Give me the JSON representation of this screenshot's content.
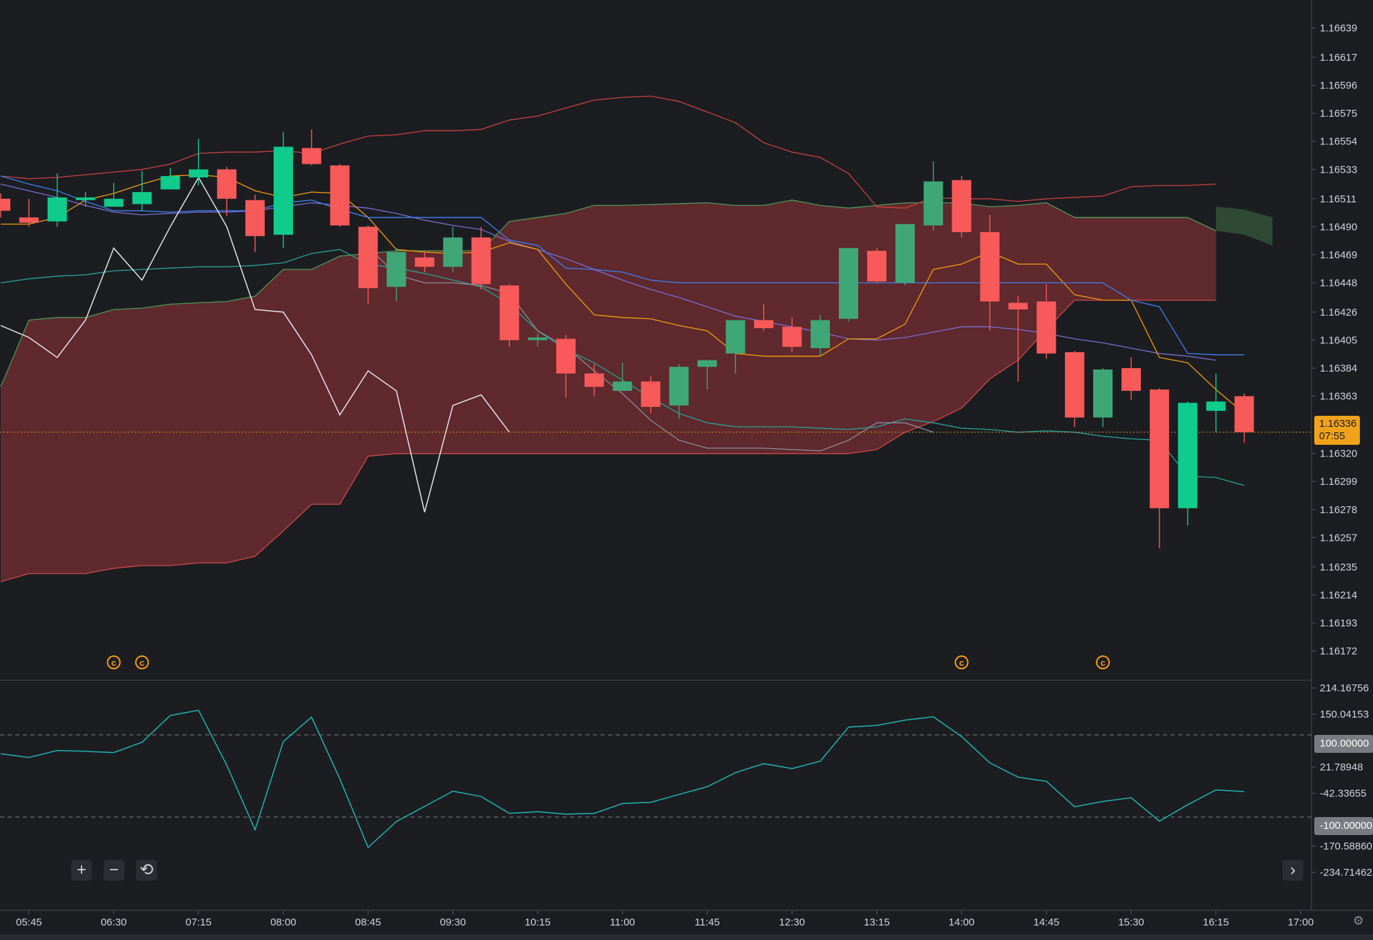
{
  "price_axis": {
    "ticks": [
      "1.16639",
      "1.16617",
      "1.16596",
      "1.16575",
      "1.16554",
      "1.16533",
      "1.16511",
      "1.16490",
      "1.16469",
      "1.16448",
      "1.16426",
      "1.16405",
      "1.16384",
      "1.16363",
      "1.16320",
      "1.16299",
      "1.16278",
      "1.16257",
      "1.16235",
      "1.16214",
      "1.16193",
      "1.16172"
    ],
    "current_price": "1.16336",
    "countdown": "07:55"
  },
  "indicator_axis": {
    "ticks": [
      "214.16756",
      "150.04153",
      "21.78948",
      "-42.33655",
      "-170.58860",
      "-234.71462"
    ],
    "upper_level": "100.00000",
    "lower_level": "-100.00000"
  },
  "time_axis": {
    "ticks": [
      "05:45",
      "06:30",
      "07:15",
      "08:00",
      "08:45",
      "09:30",
      "10:15",
      "11:00",
      "11:45",
      "12:30",
      "13:15",
      "14:00",
      "14:45",
      "15:30",
      "16:15",
      "17:00"
    ]
  },
  "controls": {
    "zoom_in": "+",
    "zoom_out": "−",
    "reset": "⟲",
    "scroll_right": "›",
    "settings": "⚙"
  },
  "event_marker_glyph": "©",
  "colors": {
    "background": "#1c1d21",
    "bull": "#26a69a",
    "bull_bright": "#0fcb8c",
    "bear": "#f85a5a",
    "cloud_bear": "#6b2c30",
    "cloud_bull": "#2e4a34",
    "bb_upper": "#c8433f",
    "bb_mid": "#2f66d8",
    "bb_lower": "#c8433f",
    "tenkan": "#f59e0b",
    "kijun": "#3b82f6",
    "chikou": "#8a8f98",
    "white_line": "#e8e8e8",
    "cci": "#1fb5b5",
    "current_price": "#f0a21a",
    "event_marker": "#f59e0b"
  },
  "chart_data": {
    "type": "candlestick",
    "interval_minutes": 15,
    "x_range": [
      "05:30",
      "17:00"
    ],
    "price_range": [
      1.1615,
      1.1666
    ],
    "candles": [
      {
        "t": "05:30",
        "o": 1.16511,
        "h": 1.16515,
        "l": 1.16497,
        "c": 1.16502
      },
      {
        "t": "05:45",
        "o": 1.16497,
        "h": 1.16511,
        "l": 1.1649,
        "c": 1.16493
      },
      {
        "t": "06:00",
        "o": 1.16494,
        "h": 1.1653,
        "l": 1.1649,
        "c": 1.16512
      },
      {
        "t": "06:15",
        "o": 1.1651,
        "h": 1.16516,
        "l": 1.16505,
        "c": 1.16512
      },
      {
        "t": "06:30",
        "o": 1.16505,
        "h": 1.16523,
        "l": 1.16505,
        "c": 1.16511
      },
      {
        "t": "06:45",
        "o": 1.16507,
        "h": 1.16532,
        "l": 1.16502,
        "c": 1.16516
      },
      {
        "t": "07:00",
        "o": 1.16518,
        "h": 1.16534,
        "l": 1.16518,
        "c": 1.16528
      },
      {
        "t": "07:15",
        "o": 1.16527,
        "h": 1.16556,
        "l": 1.16521,
        "c": 1.16533
      },
      {
        "t": "07:30",
        "o": 1.16533,
        "h": 1.16535,
        "l": 1.16498,
        "c": 1.16511
      },
      {
        "t": "07:45",
        "o": 1.1651,
        "h": 1.16514,
        "l": 1.16471,
        "c": 1.16483
      },
      {
        "t": "08:00",
        "o": 1.16484,
        "h": 1.16561,
        "l": 1.16474,
        "c": 1.1655
      },
      {
        "t": "08:15",
        "o": 1.16549,
        "h": 1.16563,
        "l": 1.16536,
        "c": 1.16537
      },
      {
        "t": "08:30",
        "o": 1.16536,
        "h": 1.16537,
        "l": 1.1649,
        "c": 1.16491
      },
      {
        "t": "08:45",
        "o": 1.1649,
        "h": 1.16491,
        "l": 1.16432,
        "c": 1.16444
      },
      {
        "t": "09:00",
        "o": 1.16445,
        "h": 1.16474,
        "l": 1.16434,
        "c": 1.16471
      },
      {
        "t": "09:15",
        "o": 1.16467,
        "h": 1.16472,
        "l": 1.16456,
        "c": 1.1646
      },
      {
        "t": "09:30",
        "o": 1.1646,
        "h": 1.1649,
        "l": 1.16456,
        "c": 1.16482
      },
      {
        "t": "09:45",
        "o": 1.16482,
        "h": 1.1649,
        "l": 1.16443,
        "c": 1.16447
      },
      {
        "t": "10:00",
        "o": 1.16446,
        "h": 1.16447,
        "l": 1.164,
        "c": 1.16405
      },
      {
        "t": "10:15",
        "o": 1.16405,
        "h": 1.1641,
        "l": 1.164,
        "c": 1.16407
      },
      {
        "t": "10:30",
        "o": 1.16406,
        "h": 1.16409,
        "l": 1.16362,
        "c": 1.1638
      },
      {
        "t": "10:45",
        "o": 1.1638,
        "h": 1.16387,
        "l": 1.16363,
        "c": 1.1637
      },
      {
        "t": "11:00",
        "o": 1.16367,
        "h": 1.16388,
        "l": 1.16367,
        "c": 1.16374
      },
      {
        "t": "11:15",
        "o": 1.16374,
        "h": 1.16378,
        "l": 1.1635,
        "c": 1.16355
      },
      {
        "t": "11:30",
        "o": 1.16356,
        "h": 1.16387,
        "l": 1.16346,
        "c": 1.16385
      },
      {
        "t": "11:45",
        "o": 1.16385,
        "h": 1.1639,
        "l": 1.16368,
        "c": 1.1639
      },
      {
        "t": "12:00",
        "o": 1.16395,
        "h": 1.1642,
        "l": 1.1638,
        "c": 1.1642
      },
      {
        "t": "12:15",
        "o": 1.1642,
        "h": 1.16432,
        "l": 1.16412,
        "c": 1.16414
      },
      {
        "t": "12:30",
        "o": 1.16415,
        "h": 1.16422,
        "l": 1.16396,
        "c": 1.164
      },
      {
        "t": "12:45",
        "o": 1.16399,
        "h": 1.16424,
        "l": 1.16393,
        "c": 1.1642
      },
      {
        "t": "13:00",
        "o": 1.16421,
        "h": 1.16474,
        "l": 1.16419,
        "c": 1.16474
      },
      {
        "t": "13:15",
        "o": 1.16472,
        "h": 1.16474,
        "l": 1.16448,
        "c": 1.16449
      },
      {
        "t": "13:30",
        "o": 1.16448,
        "h": 1.16492,
        "l": 1.16446,
        "c": 1.16492
      },
      {
        "t": "13:45",
        "o": 1.16491,
        "h": 1.16539,
        "l": 1.16487,
        "c": 1.16524
      },
      {
        "t": "14:00",
        "o": 1.16525,
        "h": 1.16528,
        "l": 1.16482,
        "c": 1.16486
      },
      {
        "t": "14:15",
        "o": 1.16486,
        "h": 1.16499,
        "l": 1.16412,
        "c": 1.16434
      },
      {
        "t": "14:30",
        "o": 1.16433,
        "h": 1.16438,
        "l": 1.16374,
        "c": 1.16428
      },
      {
        "t": "14:45",
        "o": 1.16434,
        "h": 1.16447,
        "l": 1.16391,
        "c": 1.16395
      },
      {
        "t": "15:00",
        "o": 1.16396,
        "h": 1.16397,
        "l": 1.1634,
        "c": 1.16347
      },
      {
        "t": "15:15",
        "o": 1.16347,
        "h": 1.16384,
        "l": 1.1634,
        "c": 1.16383
      },
      {
        "t": "15:30",
        "o": 1.16384,
        "h": 1.16392,
        "l": 1.1636,
        "c": 1.16367
      },
      {
        "t": "15:45",
        "o": 1.16368,
        "h": 1.16369,
        "l": 1.16249,
        "c": 1.16279
      },
      {
        "t": "16:00",
        "o": 1.16279,
        "h": 1.16359,
        "l": 1.16266,
        "c": 1.16358
      },
      {
        "t": "16:15",
        "o": 1.16352,
        "h": 1.1638,
        "l": 1.16336,
        "c": 1.16359
      },
      {
        "t": "16:30",
        "o": 1.16363,
        "h": 1.16365,
        "l": 1.16328,
        "c": 1.16336
      }
    ],
    "event_markers": [
      "06:30",
      "06:45",
      "14:00",
      "15:15"
    ],
    "cci": {
      "levels": [
        100,
        -100
      ],
      "values": [
        54,
        45,
        62,
        60,
        57,
        82,
        147,
        160,
        26,
        -131,
        84,
        143,
        -7,
        -174,
        -111,
        -74,
        -37,
        -50,
        -91,
        -87,
        -93,
        -91,
        -67,
        -64,
        -45,
        -26,
        8,
        30,
        18,
        36,
        119,
        123,
        136,
        144,
        96,
        32,
        -3,
        -13,
        -75,
        -62,
        -53,
        -110,
        -70,
        -34,
        -38
      ]
    }
  }
}
